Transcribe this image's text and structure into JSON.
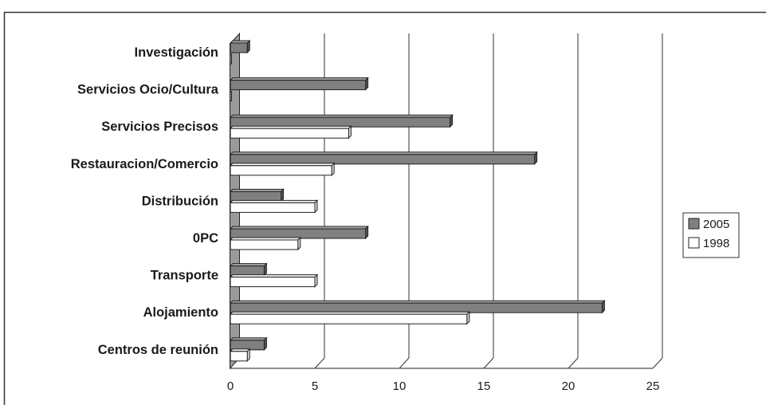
{
  "chart_data": {
    "type": "bar",
    "orientation": "horizontal",
    "style": "3d",
    "categories": [
      "Investigación",
      "Servicios Ocio/Cultura",
      "Servicios Precisos",
      "Restauracion/Comercio",
      "Distribución",
      "0PC",
      "Transporte",
      "Alojamiento",
      "Centros de reunión"
    ],
    "series": [
      {
        "name": "2005",
        "color": "#808080",
        "values": [
          1,
          8,
          13,
          18,
          3,
          8,
          2,
          22,
          2
        ]
      },
      {
        "name": "1998",
        "color": "#ffffff",
        "values": [
          0,
          0,
          7,
          6,
          5,
          4,
          5,
          14,
          1
        ]
      }
    ],
    "xlim": [
      0,
      25
    ],
    "xticks": [
      "0",
      "5",
      "10",
      "15",
      "20",
      "25"
    ],
    "grid": "vertical",
    "legend": "right"
  }
}
